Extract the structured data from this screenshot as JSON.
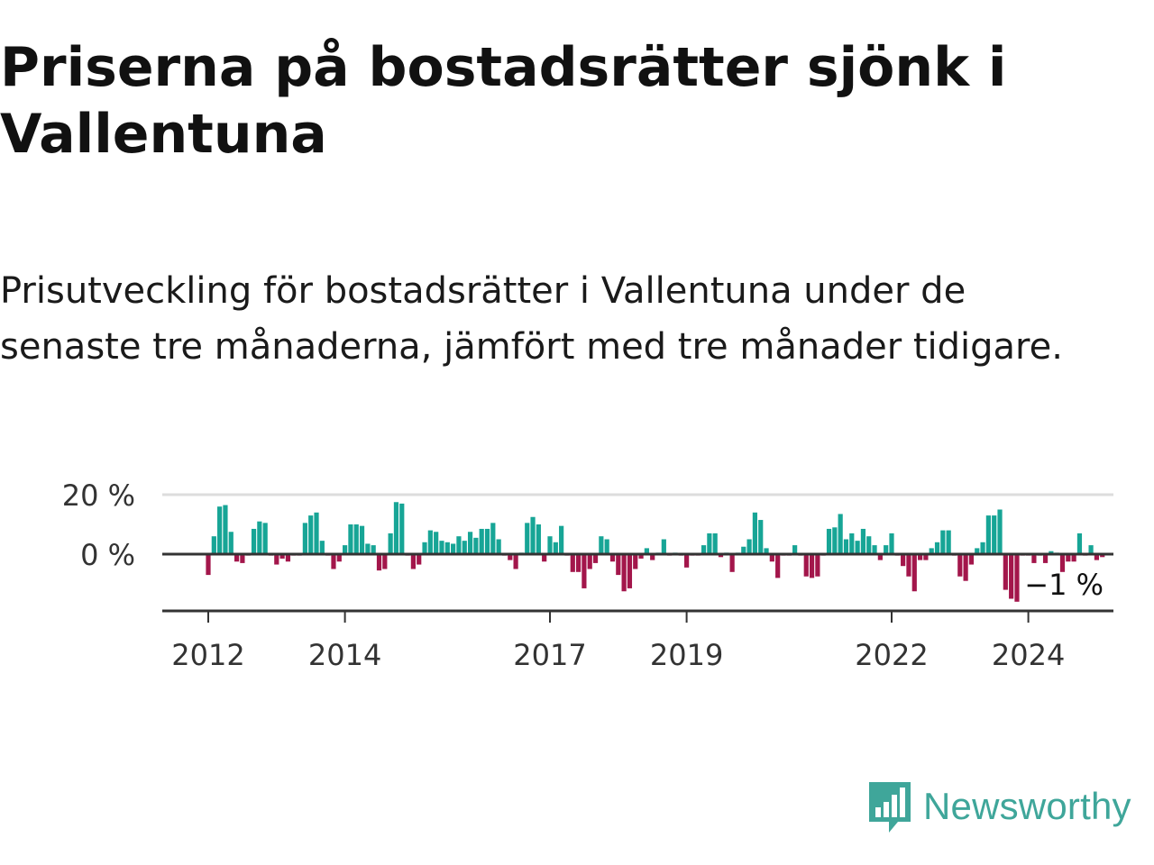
{
  "title": "Priserna på bostadsrätter sjönk i Vallentuna",
  "subtitle": "Prisutveckling för bostadsrätter i Vallentuna under de senaste tre månaderna, jämfört med tre månader tidigare.",
  "logo": {
    "text": "Newsworthy"
  },
  "colors": {
    "positive": "#17a596",
    "negative": "#a3164b",
    "grid": "#dddddd",
    "axis": "#333333",
    "brand": "#3fa69a"
  },
  "chart_data": {
    "type": "bar",
    "title": "Priserna på bostadsrätter sjönk i Vallentuna",
    "xlabel": "",
    "ylabel": "",
    "ylim": [
      -20,
      20
    ],
    "y_ticks": [
      {
        "value": 0,
        "label": "0 %"
      },
      {
        "value": 20,
        "label": "20 %"
      }
    ],
    "x_ticks": [
      {
        "value": 2012.0,
        "label": "2012"
      },
      {
        "value": 2014.0,
        "label": "2014"
      },
      {
        "value": 2017.0,
        "label": "2017"
      },
      {
        "value": 2019.0,
        "label": "2019"
      },
      {
        "value": 2022.0,
        "label": "2022"
      },
      {
        "value": 2024.0,
        "label": "2024"
      }
    ],
    "series": [
      {
        "name": "Prisutveckling",
        "start": 2012.0,
        "step": 0.0833333,
        "values": [
          -7,
          6,
          16,
          16.5,
          7.5,
          -2.5,
          -3,
          -0.5,
          8.5,
          11,
          10.5,
          -0.5,
          -3.5,
          -1.5,
          -2.5,
          -0.5,
          -0.5,
          10.5,
          13,
          14,
          4.5,
          -0.5,
          -5,
          -2.5,
          3,
          10,
          10,
          9.5,
          3.5,
          3,
          -5.5,
          -5,
          7,
          17.5,
          17,
          -0.5,
          -5,
          -3.5,
          4,
          8,
          7.5,
          4.5,
          4,
          3.5,
          6,
          4.5,
          7.5,
          5.5,
          8.5,
          8.5,
          10.5,
          5,
          -0.5,
          -2,
          -5,
          0.5,
          10.5,
          12.5,
          10,
          -2.5,
          6,
          4,
          9.5,
          -0.5,
          -6,
          -6,
          -11.5,
          -5,
          -3,
          6,
          5,
          -2.5,
          -7,
          -12.5,
          -11.5,
          -5,
          -1.5,
          2,
          -2,
          0.5,
          5,
          -0.5,
          0.5,
          -0.5,
          -4.5,
          -0.5,
          -0.5,
          3,
          7,
          7,
          -1,
          0.5,
          -6,
          0.5,
          2.5,
          5,
          14,
          11.5,
          2,
          -2.5,
          -8,
          -0.5,
          -0.5,
          3,
          -0.5,
          -7.5,
          -8,
          -7.5,
          -0.5,
          8.5,
          9,
          13.5,
          5,
          7,
          4.5,
          8.5,
          6,
          3,
          -2,
          3,
          7,
          -0.5,
          -4,
          -7.5,
          -12.5,
          -2,
          -2,
          2,
          4,
          8,
          8,
          -0.5,
          -7.5,
          -9,
          -3.5,
          2,
          4,
          13,
          13,
          15,
          -12,
          -15,
          -16,
          -0.5,
          -0.5,
          -3,
          -0.5,
          -3,
          1,
          0.5,
          -6,
          -2.5,
          -2.5,
          7,
          -0.5,
          3,
          -2,
          -1
        ]
      }
    ],
    "annotations": [
      {
        "text": "−1 %",
        "target": "last"
      }
    ]
  }
}
